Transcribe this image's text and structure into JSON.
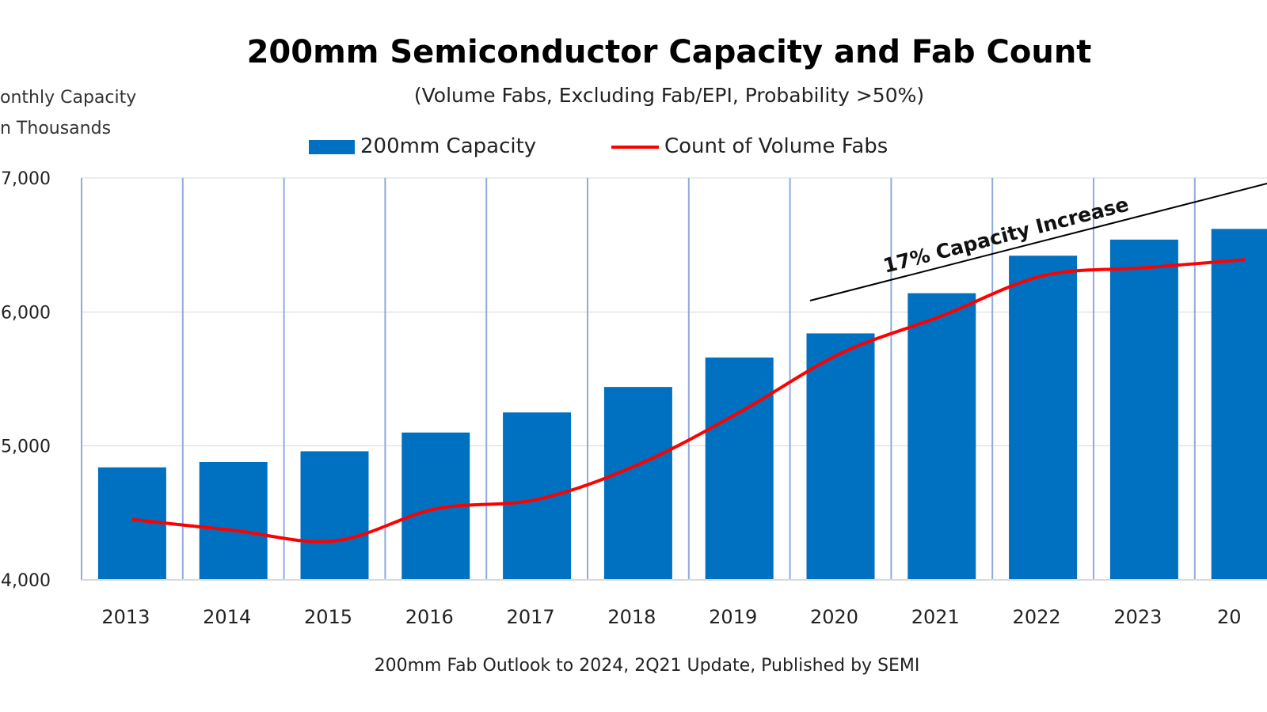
{
  "chart_data": {
    "type": "bar",
    "title": "200mm Semiconductor Capacity and Fab Count",
    "subtitle": "(Volume Fabs, Excluding Fab/EPI, Probability >50%)",
    "ylabel_lines": [
      "onthly Capacity",
      "n Thousands"
    ],
    "categories": [
      "2013",
      "2014",
      "2015",
      "2016",
      "2017",
      "2018",
      "2019",
      "2020",
      "2021",
      "2022",
      "2023",
      "20"
    ],
    "series": [
      {
        "name": "200mm Capacity",
        "kind": "bar",
        "color": "#0070C0",
        "values": [
          4840,
          4880,
          4960,
          5100,
          5250,
          5440,
          5660,
          5840,
          6140,
          6420,
          6540,
          6620
        ]
      },
      {
        "name": "Count of Volume Fabs",
        "kind": "line",
        "color": "#FF0000",
        "values": [
          4450,
          4370,
          4290,
          4530,
          4600,
          4860,
          5250,
          5690,
          5970,
          6270,
          6330,
          6390
        ]
      }
    ],
    "yticks": [
      "4,000",
      "5,000",
      "6,000",
      "7,000"
    ],
    "ytick_values": [
      4000,
      5000,
      6000,
      7000
    ],
    "ylim": [
      4000,
      7000
    ],
    "grid": true,
    "legend": "top-center",
    "annotation": "17% Capacity Increase",
    "source": "200mm Fab Outlook to 2024, 2Q21 Update, Published by SEMI"
  }
}
